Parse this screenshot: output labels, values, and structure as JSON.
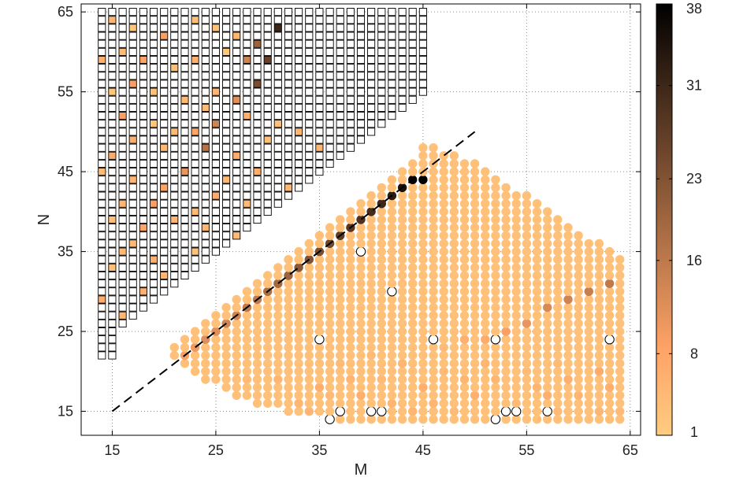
{
  "chart_data": {
    "type": "scatter",
    "title": "",
    "xlabel": "M",
    "ylabel": "N",
    "xlim": [
      12,
      66
    ],
    "ylim": [
      12,
      66
    ],
    "xticks": [
      15,
      25,
      35,
      45,
      55,
      65
    ],
    "yticks": [
      15,
      25,
      35,
      45,
      55,
      65
    ],
    "grid": "dotted",
    "colorbar": {
      "ticks": [
        1,
        8,
        16,
        23,
        31,
        38
      ],
      "range": [
        1,
        38
      ],
      "colormap": "copper-reversed",
      "low_color": "#ffcc80",
      "high_color": "#000000"
    },
    "dashed_line": {
      "from": [
        15,
        15
      ],
      "to": [
        50,
        50
      ]
    },
    "square_region": {
      "marker": "open-square",
      "row_x_ranges": [
        [
          14,
          15
        ],
        [
          14,
          15
        ],
        [
          14,
          15
        ],
        [
          14,
          15
        ],
        [
          14,
          16
        ],
        [
          14,
          17
        ],
        [
          14,
          18
        ],
        [
          14,
          19
        ],
        [
          14,
          20
        ],
        [
          14,
          21
        ],
        [
          14,
          22
        ],
        [
          14,
          23
        ],
        [
          14,
          24
        ],
        [
          14,
          25
        ],
        [
          14,
          26
        ],
        [
          14,
          27
        ],
        [
          14,
          28
        ],
        [
          14,
          29
        ],
        [
          14,
          30
        ],
        [
          14,
          31
        ],
        [
          14,
          32
        ],
        [
          14,
          33
        ],
        [
          14,
          34
        ],
        [
          14,
          35
        ],
        [
          14,
          36
        ],
        [
          14,
          37
        ],
        [
          14,
          38
        ],
        [
          14,
          39
        ],
        [
          14,
          40
        ],
        [
          14,
          41
        ],
        [
          14,
          42
        ],
        [
          14,
          43
        ],
        [
          14,
          44
        ],
        [
          14,
          45
        ],
        [
          14,
          45
        ],
        [
          14,
          45
        ],
        [
          14,
          45
        ],
        [
          14,
          45
        ],
        [
          14,
          45
        ],
        [
          14,
          45
        ],
        [
          14,
          45
        ],
        [
          14,
          45
        ],
        [
          14,
          45
        ],
        [
          14,
          45
        ]
      ],
      "row_y_start": 22,
      "colored_cells": [
        [
          15,
          64,
          5
        ],
        [
          17,
          63,
          2
        ],
        [
          20,
          62,
          9
        ],
        [
          23,
          64,
          3
        ],
        [
          25,
          63,
          3
        ],
        [
          27,
          62,
          5
        ],
        [
          29,
          61,
          20
        ],
        [
          31,
          63,
          31
        ],
        [
          14,
          59,
          6
        ],
        [
          16,
          60,
          4
        ],
        [
          18,
          59,
          8
        ],
        [
          21,
          58,
          3
        ],
        [
          23,
          59,
          6
        ],
        [
          26,
          60,
          2
        ],
        [
          28,
          59,
          14
        ],
        [
          30,
          59,
          26
        ],
        [
          17,
          56,
          9
        ],
        [
          19,
          55,
          3
        ],
        [
          22,
          54,
          4
        ],
        [
          25,
          55,
          5
        ],
        [
          27,
          54,
          12
        ],
        [
          29,
          56,
          24
        ],
        [
          15,
          55,
          2
        ],
        [
          24,
          53,
          4
        ],
        [
          16,
          52,
          9
        ],
        [
          19,
          51,
          2
        ],
        [
          23,
          50,
          8
        ],
        [
          25,
          51,
          14
        ],
        [
          28,
          52,
          6
        ],
        [
          31,
          51,
          3
        ],
        [
          21,
          50,
          4
        ],
        [
          33,
          50,
          5
        ],
        [
          17,
          49,
          6
        ],
        [
          20,
          48,
          4
        ],
        [
          24,
          48,
          17
        ],
        [
          27,
          47,
          7
        ],
        [
          30,
          49,
          3
        ],
        [
          35,
          48,
          5
        ],
        [
          15,
          47,
          7
        ],
        [
          38,
          47,
          4
        ],
        [
          14,
          45,
          4
        ],
        [
          17,
          44,
          5
        ],
        [
          20,
          43,
          8
        ],
        [
          22,
          45,
          11
        ],
        [
          26,
          44,
          4
        ],
        [
          29,
          45,
          6
        ],
        [
          32,
          43,
          5
        ],
        [
          36,
          44,
          3
        ],
        [
          16,
          41,
          5
        ],
        [
          19,
          41,
          9
        ],
        [
          21,
          39,
          5
        ],
        [
          23,
          40,
          4
        ],
        [
          25,
          42,
          7
        ],
        [
          28,
          41,
          4
        ],
        [
          31,
          40,
          5
        ],
        [
          34,
          41,
          4
        ],
        [
          15,
          39,
          3
        ],
        [
          18,
          38,
          8
        ],
        [
          24,
          38,
          5
        ],
        [
          27,
          37,
          4
        ],
        [
          30,
          38,
          6
        ],
        [
          33,
          38,
          3
        ],
        [
          17,
          36,
          4
        ],
        [
          16,
          35,
          4
        ],
        [
          19,
          34,
          6
        ],
        [
          23,
          35,
          3
        ],
        [
          26,
          34,
          4
        ],
        [
          29,
          34,
          5
        ],
        [
          15,
          33,
          3
        ],
        [
          20,
          32,
          5
        ],
        [
          24,
          31,
          4
        ],
        [
          18,
          30,
          6
        ],
        [
          14,
          29,
          7
        ],
        [
          21,
          28,
          3
        ],
        [
          16,
          27,
          5
        ],
        [
          19,
          26,
          4
        ]
      ]
    },
    "circle_region": {
      "marker": "filled-circle",
      "base_value": 3,
      "row_x_ranges": [
        [
          36,
          64
        ],
        [
          32,
          64
        ],
        [
          29,
          64
        ],
        [
          27,
          64
        ],
        [
          26,
          64
        ],
        [
          24,
          64
        ],
        [
          23,
          64
        ],
        [
          22,
          64
        ],
        [
          21,
          64
        ],
        [
          21,
          64
        ],
        [
          22,
          64
        ],
        [
          23,
          64
        ],
        [
          24,
          64
        ],
        [
          25,
          64
        ],
        [
          26,
          64
        ],
        [
          27,
          64
        ],
        [
          28,
          64
        ],
        [
          29,
          64
        ],
        [
          30,
          64
        ],
        [
          31,
          64
        ],
        [
          32,
          64
        ],
        [
          33,
          63
        ],
        [
          34,
          62
        ],
        [
          35,
          60
        ],
        [
          36,
          59
        ],
        [
          37,
          58
        ],
        [
          38,
          57
        ],
        [
          39,
          56
        ],
        [
          40,
          55
        ],
        [
          41,
          53
        ],
        [
          42,
          52
        ],
        [
          43,
          51
        ],
        [
          44,
          50
        ],
        [
          45,
          48
        ],
        [
          45,
          46
        ]
      ],
      "row_y_start": 14,
      "dark_edge_values": [
        [
          21,
          21,
          8
        ],
        [
          22,
          22,
          9
        ],
        [
          23,
          23,
          10
        ],
        [
          24,
          24,
          12
        ],
        [
          25,
          25,
          12
        ],
        [
          26,
          26,
          14
        ],
        [
          27,
          27,
          14
        ],
        [
          28,
          28,
          16
        ],
        [
          29,
          29,
          16
        ],
        [
          30,
          30,
          18
        ],
        [
          31,
          31,
          19
        ],
        [
          32,
          32,
          20
        ],
        [
          33,
          33,
          22
        ],
        [
          34,
          34,
          23
        ],
        [
          35,
          35,
          24
        ],
        [
          36,
          36,
          25
        ],
        [
          37,
          37,
          27
        ],
        [
          38,
          38,
          28
        ],
        [
          39,
          39,
          29
        ],
        [
          40,
          40,
          30
        ],
        [
          41,
          41,
          31
        ],
        [
          42,
          42,
          33
        ],
        [
          43,
          43,
          35
        ],
        [
          44,
          44,
          37
        ],
        [
          45,
          44,
          38
        ]
      ],
      "diagonal_series": [
        [
          47,
          23,
          4
        ],
        [
          49,
          24,
          6
        ],
        [
          51,
          24,
          7
        ],
        [
          53,
          25,
          9
        ],
        [
          55,
          26,
          11
        ],
        [
          57,
          28,
          13
        ],
        [
          59,
          29,
          14
        ],
        [
          61,
          30,
          15
        ],
        [
          63,
          31,
          16
        ],
        [
          40,
          22,
          4
        ],
        [
          43,
          21,
          5
        ],
        [
          46,
          22,
          3
        ],
        [
          38,
          19,
          5
        ],
        [
          41,
          19,
          4
        ],
        [
          45,
          18,
          6
        ]
      ],
      "scattered": [
        [
          33,
          16,
          5
        ],
        [
          36,
          17,
          4
        ],
        [
          39,
          17,
          6
        ],
        [
          42,
          16,
          5
        ],
        [
          46,
          16,
          5
        ],
        [
          50,
          17,
          6
        ],
        [
          54,
          16,
          4
        ],
        [
          57,
          17,
          6
        ],
        [
          60,
          17,
          5
        ],
        [
          63,
          18,
          6
        ],
        [
          28,
          19,
          4
        ],
        [
          31,
          19,
          5
        ],
        [
          35,
          18,
          6
        ],
        [
          49,
          19,
          5
        ],
        [
          52,
          19,
          5
        ],
        [
          56,
          18,
          5
        ],
        [
          59,
          19,
          6
        ],
        [
          62,
          20,
          7
        ],
        [
          27,
          16,
          5
        ],
        [
          29,
          15,
          4
        ],
        [
          34,
          15,
          5
        ],
        [
          44,
          15,
          5
        ],
        [
          48,
          15,
          4
        ],
        [
          58,
          15,
          4
        ],
        [
          62,
          15,
          5
        ],
        [
          64,
          15,
          4
        ],
        [
          24,
          18,
          4
        ],
        [
          26,
          17,
          5
        ],
        [
          37,
          21,
          4
        ],
        [
          47,
          20,
          4
        ],
        [
          51,
          21,
          5
        ],
        [
          55,
          20,
          4
        ],
        [
          58,
          21,
          4
        ]
      ],
      "empty_circles": [
        [
          39,
          35
        ],
        [
          42,
          30
        ],
        [
          35,
          24
        ],
        [
          46,
          24
        ],
        [
          52,
          24
        ],
        [
          63,
          24
        ],
        [
          37,
          15
        ],
        [
          40,
          15
        ],
        [
          41,
          15
        ],
        [
          53,
          15
        ],
        [
          54,
          15
        ],
        [
          57,
          15
        ],
        [
          36,
          14
        ],
        [
          52,
          14
        ]
      ]
    }
  }
}
